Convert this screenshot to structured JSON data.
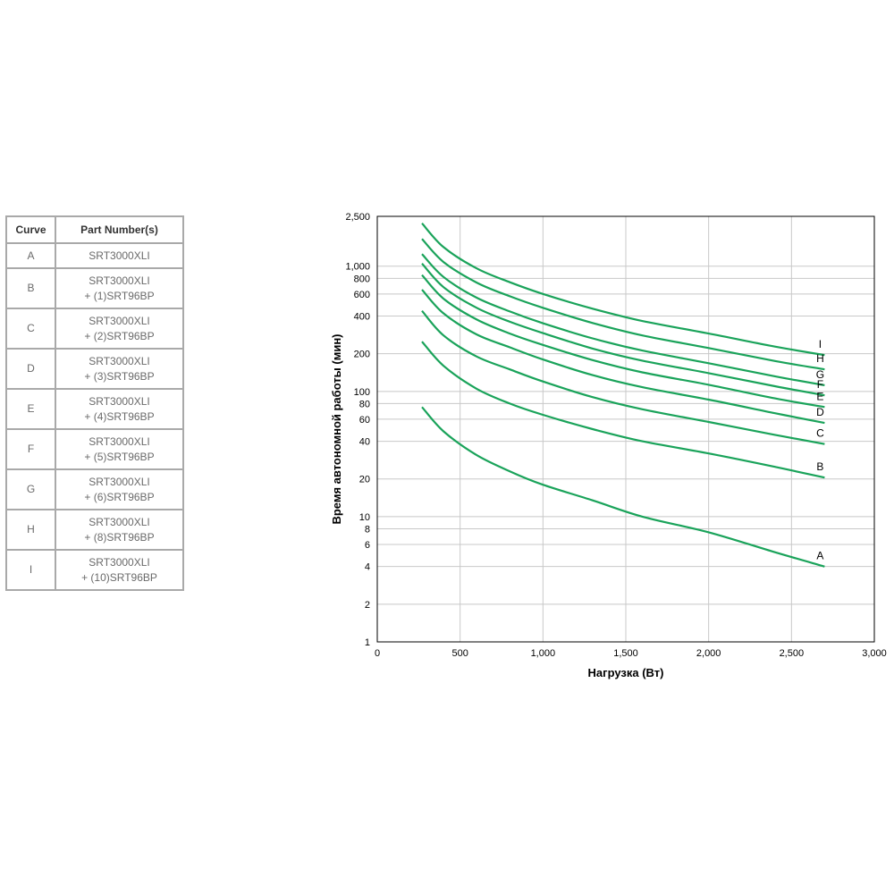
{
  "legend_table": {
    "headers": [
      "Curve",
      "Part Number(s)"
    ],
    "rows": [
      {
        "curve": "A",
        "line1": "SRT3000XLI",
        "line2": ""
      },
      {
        "curve": "B",
        "line1": "SRT3000XLI",
        "line2": "+ (1)SRT96BP"
      },
      {
        "curve": "C",
        "line1": "SRT3000XLI",
        "line2": "+ (2)SRT96BP"
      },
      {
        "curve": "D",
        "line1": "SRT3000XLI",
        "line2": "+ (3)SRT96BP"
      },
      {
        "curve": "E",
        "line1": "SRT3000XLI",
        "line2": "+ (4)SRT96BP"
      },
      {
        "curve": "F",
        "line1": "SRT3000XLI",
        "line2": "+ (5)SRT96BP"
      },
      {
        "curve": "G",
        "line1": "SRT3000XLI",
        "line2": "+ (6)SRT96BP"
      },
      {
        "curve": "H",
        "line1": "SRT3000XLI",
        "line2": "+ (8)SRT96BP"
      },
      {
        "curve": "I",
        "line1": "SRT3000XLI",
        "line2": "+ (10)SRT96BP"
      }
    ]
  },
  "chart_data": {
    "type": "line",
    "title": "",
    "xlabel": "Нагрузка (Вт)",
    "ylabel": "Время автономной работы (мин)",
    "xlim": [
      0,
      3000
    ],
    "ylim": [
      1,
      2500
    ],
    "yscale": "log",
    "grid": true,
    "line_color": "#1aa35a",
    "x_ticks": [
      0,
      500,
      1000,
      1500,
      2000,
      2500,
      3000
    ],
    "x_tick_labels": [
      "0",
      "500",
      "1,000",
      "1,500",
      "2,000",
      "2,500",
      "3,000"
    ],
    "y_ticks": [
      1,
      2,
      4,
      6,
      8,
      10,
      20,
      40,
      60,
      80,
      100,
      200,
      400,
      600,
      800,
      1000,
      2500
    ],
    "y_tick_labels": [
      "1",
      "2",
      "4",
      "6",
      "8",
      "10",
      "20",
      "40",
      "60",
      "80",
      "100",
      "200",
      "400",
      "600",
      "800",
      "1,000",
      "2,500"
    ],
    "x": [
      270,
      400,
      600,
      800,
      1000,
      1300,
      1600,
      2000,
      2400,
      2700
    ],
    "series": [
      {
        "name": "A",
        "values": [
          75,
          48,
          31,
          23,
          18,
          13.5,
          10,
          7.5,
          5.2,
          4
        ]
      },
      {
        "name": "B",
        "values": [
          250,
          160,
          105,
          80,
          65,
          50,
          40,
          32,
          25,
          20.5
        ]
      },
      {
        "name": "C",
        "values": [
          440,
          280,
          190,
          150,
          120,
          90,
          72,
          57,
          45,
          38
        ]
      },
      {
        "name": "D",
        "values": [
          650,
          420,
          285,
          225,
          180,
          135,
          108,
          86,
          67,
          56
        ]
      },
      {
        "name": "E",
        "values": [
          850,
          550,
          375,
          290,
          235,
          178,
          142,
          113,
          88,
          75
        ]
      },
      {
        "name": "F",
        "values": [
          1050,
          680,
          465,
          360,
          292,
          220,
          176,
          140,
          110,
          93
        ]
      },
      {
        "name": "G",
        "values": [
          1250,
          820,
          560,
          435,
          350,
          265,
          212,
          168,
          132,
          112
        ]
      },
      {
        "name": "H",
        "values": [
          1650,
          1080,
          740,
          575,
          465,
          352,
          280,
          222,
          175,
          150
        ]
      },
      {
        "name": "I",
        "values": [
          2200,
          1420,
          960,
          745,
          600,
          458,
          365,
          290,
          228,
          195
        ]
      }
    ]
  }
}
